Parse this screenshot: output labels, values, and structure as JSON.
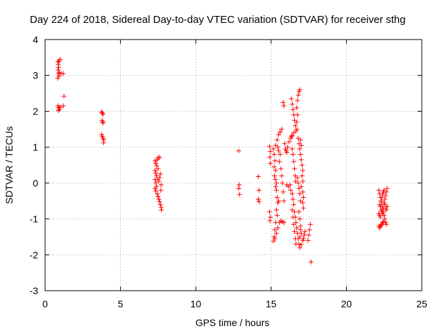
{
  "chart_data": {
    "type": "scatter",
    "title": "Day 224 of 2018, Sidereal Day-to-day VTEC variation (SDTVAR) for receiver sthg",
    "xlabel": "GPS time / hours",
    "ylabel": "SDTVAR / TECUs",
    "xlim": [
      0,
      25
    ],
    "ylim": [
      -3,
      4
    ],
    "xticks": [
      0,
      5,
      10,
      15,
      20,
      25
    ],
    "yticks": [
      -3,
      -2,
      -1,
      0,
      1,
      2,
      3,
      4
    ],
    "grid": true,
    "marker": "+",
    "color": "#ff0000",
    "series": [
      {
        "name": "SDTVAR",
        "points": [
          [
            0.85,
            3.38
          ],
          [
            0.88,
            3.3
          ],
          [
            0.9,
            3.22
          ],
          [
            0.86,
            3.15
          ],
          [
            0.92,
            3.4
          ],
          [
            1.0,
            3.45
          ],
          [
            0.88,
            3.05
          ],
          [
            0.92,
            2.98
          ],
          [
            0.84,
            2.92
          ],
          [
            0.95,
            3.08
          ],
          [
            1.05,
            3.05
          ],
          [
            1.2,
            3.05
          ],
          [
            0.85,
            2.15
          ],
          [
            0.9,
            2.1
          ],
          [
            0.95,
            2.05
          ],
          [
            1.0,
            2.12
          ],
          [
            0.88,
            2.02
          ],
          [
            1.2,
            2.15
          ],
          [
            1.25,
            2.42
          ],
          [
            3.75,
            1.98
          ],
          [
            3.8,
            1.95
          ],
          [
            3.85,
            1.92
          ],
          [
            3.78,
            1.75
          ],
          [
            3.82,
            1.7
          ],
          [
            3.85,
            1.68
          ],
          [
            3.75,
            1.35
          ],
          [
            3.8,
            1.3
          ],
          [
            3.85,
            1.25
          ],
          [
            3.9,
            1.2
          ],
          [
            3.88,
            1.12
          ],
          [
            7.3,
            0.62
          ],
          [
            7.35,
            0.55
          ],
          [
            7.4,
            0.48
          ],
          [
            7.45,
            0.65
          ],
          [
            7.5,
            0.7
          ],
          [
            7.6,
            0.72
          ],
          [
            7.3,
            0.35
          ],
          [
            7.35,
            0.28
          ],
          [
            7.4,
            0.2
          ],
          [
            7.3,
            0.1
          ],
          [
            7.35,
            0.0
          ],
          [
            7.4,
            -0.1
          ],
          [
            7.3,
            -0.15
          ],
          [
            7.35,
            -0.22
          ],
          [
            7.45,
            -0.3
          ],
          [
            7.5,
            -0.38
          ],
          [
            7.55,
            -0.45
          ],
          [
            7.6,
            -0.52
          ],
          [
            7.65,
            -0.6
          ],
          [
            7.7,
            -0.68
          ],
          [
            7.72,
            -0.75
          ],
          [
            7.6,
            0.15
          ],
          [
            7.55,
            0.05
          ],
          [
            7.65,
            0.25
          ],
          [
            7.7,
            -0.05
          ],
          [
            7.68,
            -0.2
          ],
          [
            7.5,
            0.4
          ],
          [
            7.45,
            0.1
          ],
          [
            12.85,
            0.9
          ],
          [
            12.88,
            -0.05
          ],
          [
            12.85,
            -0.15
          ],
          [
            12.9,
            -0.32
          ],
          [
            14.15,
            0.18
          ],
          [
            14.2,
            -0.2
          ],
          [
            14.15,
            -0.45
          ],
          [
            14.2,
            -0.52
          ],
          [
            14.9,
            1.02
          ],
          [
            14.95,
            0.88
          ],
          [
            14.92,
            0.72
          ],
          [
            14.95,
            0.55
          ],
          [
            14.9,
            -0.8
          ],
          [
            14.95,
            -0.95
          ],
          [
            14.92,
            -1.05
          ],
          [
            15.15,
            0.95
          ],
          [
            15.2,
            0.8
          ],
          [
            15.25,
            0.62
          ],
          [
            15.2,
            0.45
          ],
          [
            15.3,
            0.35
          ],
          [
            15.22,
            0.2
          ],
          [
            15.28,
            0.1
          ],
          [
            15.35,
            0.0
          ],
          [
            15.3,
            -0.1
          ],
          [
            15.35,
            -0.2
          ],
          [
            15.4,
            -0.4
          ],
          [
            15.45,
            -0.55
          ],
          [
            15.35,
            -0.75
          ],
          [
            15.4,
            -0.9
          ],
          [
            15.3,
            -1.1
          ],
          [
            15.25,
            -1.3
          ],
          [
            15.2,
            -1.5
          ],
          [
            15.15,
            -1.62
          ],
          [
            15.25,
            -1.55
          ],
          [
            15.35,
            -1.4
          ],
          [
            15.45,
            -1.25
          ],
          [
            15.55,
            -1.1
          ],
          [
            15.65,
            -1.05
          ],
          [
            15.75,
            -1.08
          ],
          [
            15.85,
            -1.1
          ],
          [
            15.3,
            1.05
          ],
          [
            15.4,
            1.2
          ],
          [
            15.5,
            1.35
          ],
          [
            15.6,
            1.42
          ],
          [
            15.7,
            1.5
          ],
          [
            15.45,
            1.0
          ],
          [
            15.5,
            0.9
          ],
          [
            15.6,
            0.8
          ],
          [
            15.55,
            0.6
          ],
          [
            15.65,
            0.4
          ],
          [
            15.7,
            0.2
          ],
          [
            15.75,
            0.0
          ],
          [
            15.8,
            -0.25
          ],
          [
            15.85,
            -0.5
          ],
          [
            15.9,
            1.1
          ],
          [
            15.95,
            0.95
          ],
          [
            16.0,
            0.9
          ],
          [
            16.05,
            0.85
          ],
          [
            16.1,
            1.0
          ],
          [
            16.2,
            1.15
          ],
          [
            16.3,
            1.25
          ],
          [
            16.4,
            1.32
          ],
          [
            16.5,
            1.4
          ],
          [
            15.5,
            -0.5
          ],
          [
            15.8,
            2.25
          ],
          [
            15.85,
            2.15
          ],
          [
            16.05,
            -0.05
          ],
          [
            16.15,
            -0.1
          ],
          [
            16.25,
            -0.05
          ],
          [
            16.3,
            -0.2
          ],
          [
            16.4,
            -0.3
          ],
          [
            16.45,
            -0.45
          ],
          [
            16.5,
            -0.6
          ],
          [
            16.55,
            -0.8
          ],
          [
            16.6,
            -0.95
          ],
          [
            16.65,
            -1.1
          ],
          [
            16.7,
            -1.25
          ],
          [
            16.75,
            -1.4
          ],
          [
            16.8,
            -1.55
          ],
          [
            16.85,
            -1.7
          ],
          [
            16.9,
            -1.8
          ],
          [
            17.0,
            -1.72
          ],
          [
            17.1,
            -1.6
          ],
          [
            17.2,
            -1.45
          ],
          [
            17.15,
            -1.55
          ],
          [
            17.25,
            -1.35
          ],
          [
            16.9,
            -1.5
          ],
          [
            17.0,
            -1.4
          ],
          [
            16.95,
            -1.3
          ],
          [
            16.35,
            2.35
          ],
          [
            16.4,
            2.2
          ],
          [
            16.45,
            2.05
          ],
          [
            16.5,
            1.9
          ],
          [
            16.55,
            1.75
          ],
          [
            16.6,
            1.6
          ],
          [
            16.65,
            1.45
          ],
          [
            16.35,
            1.3
          ],
          [
            16.4,
            0.95
          ],
          [
            16.45,
            0.8
          ],
          [
            16.5,
            0.6
          ],
          [
            16.55,
            0.4
          ],
          [
            16.6,
            0.2
          ],
          [
            16.62,
            0.05
          ],
          [
            16.75,
            2.3
          ],
          [
            16.8,
            2.45
          ],
          [
            16.85,
            2.55
          ],
          [
            16.9,
            2.6
          ],
          [
            16.7,
            2.1
          ],
          [
            16.75,
            1.9
          ],
          [
            16.7,
            1.7
          ],
          [
            16.72,
            1.5
          ],
          [
            16.8,
            1.25
          ],
          [
            16.85,
            1.1
          ],
          [
            16.9,
            0.95
          ],
          [
            16.95,
            0.8
          ],
          [
            17.0,
            0.65
          ],
          [
            17.05,
            0.5
          ],
          [
            17.1,
            0.35
          ],
          [
            17.05,
            0.2
          ],
          [
            17.1,
            0.05
          ],
          [
            17.0,
            -0.1
          ],
          [
            17.1,
            -0.25
          ],
          [
            17.15,
            -0.4
          ],
          [
            17.1,
            -0.55
          ],
          [
            17.15,
            -0.7
          ],
          [
            16.95,
            1.2
          ],
          [
            17.0,
            1.05
          ],
          [
            16.75,
            0.15
          ],
          [
            16.8,
            0.0
          ],
          [
            16.85,
            -0.15
          ],
          [
            16.9,
            -0.3
          ],
          [
            16.95,
            -0.5
          ],
          [
            16.85,
            -0.8
          ],
          [
            16.9,
            -1.0
          ],
          [
            16.95,
            -1.2
          ],
          [
            16.4,
            -0.75
          ],
          [
            16.45,
            -0.95
          ],
          [
            16.5,
            -1.15
          ],
          [
            16.55,
            -1.35
          ],
          [
            16.6,
            -1.55
          ],
          [
            16.65,
            -1.7
          ],
          [
            17.6,
            -1.15
          ],
          [
            17.55,
            -1.3
          ],
          [
            17.5,
            -1.45
          ],
          [
            17.45,
            -1.6
          ],
          [
            17.65,
            -2.2
          ],
          [
            22.15,
            -0.2
          ],
          [
            22.2,
            -0.3
          ],
          [
            22.25,
            -0.4
          ],
          [
            22.3,
            -0.5
          ],
          [
            22.35,
            -0.6
          ],
          [
            22.4,
            -0.7
          ],
          [
            22.45,
            -0.8
          ],
          [
            22.5,
            -0.9
          ],
          [
            22.55,
            -1.0
          ],
          [
            22.6,
            -1.1
          ],
          [
            22.65,
            -1.15
          ],
          [
            22.15,
            -1.2
          ],
          [
            22.2,
            -1.25
          ],
          [
            22.25,
            -1.2
          ],
          [
            22.3,
            -1.18
          ],
          [
            22.35,
            -1.15
          ],
          [
            22.4,
            -1.1
          ],
          [
            22.45,
            -1.08
          ],
          [
            22.2,
            -0.6
          ],
          [
            22.25,
            -0.65
          ],
          [
            22.3,
            -0.75
          ],
          [
            22.35,
            -0.8
          ],
          [
            22.4,
            -0.85
          ],
          [
            22.45,
            -0.7
          ],
          [
            22.5,
            -0.55
          ],
          [
            22.55,
            -0.45
          ],
          [
            22.6,
            -0.35
          ],
          [
            22.65,
            -0.25
          ],
          [
            22.7,
            -0.15
          ],
          [
            22.15,
            -0.85
          ],
          [
            22.2,
            -0.9
          ],
          [
            22.25,
            -0.95
          ],
          [
            22.3,
            -0.5
          ],
          [
            22.35,
            -0.4
          ],
          [
            22.4,
            -0.3
          ],
          [
            22.45,
            -0.25
          ],
          [
            22.5,
            -0.2
          ],
          [
            22.55,
            -0.6
          ],
          [
            22.6,
            -0.7
          ],
          [
            22.65,
            -0.75
          ],
          [
            22.7,
            -0.65
          ]
        ]
      }
    ]
  }
}
